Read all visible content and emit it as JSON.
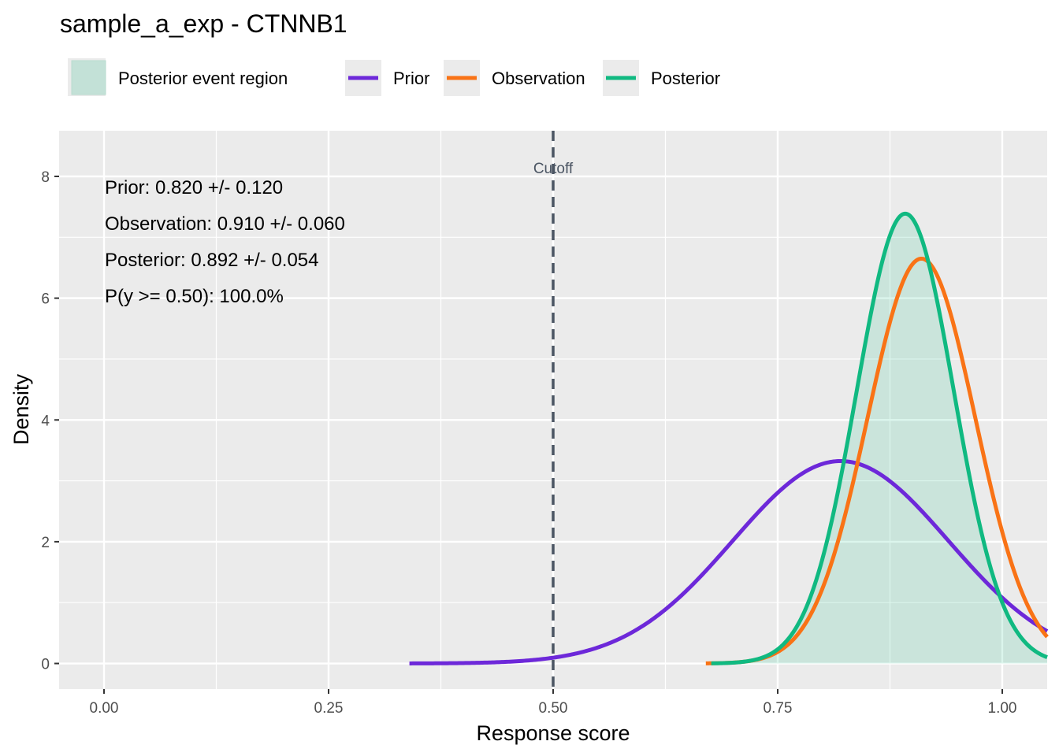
{
  "chart_data": {
    "type": "line",
    "title": "sample_a_exp - CTNNB1",
    "xlabel": "Response score",
    "ylabel": "Density",
    "xlim": [
      -0.05,
      1.05
    ],
    "ylim": [
      -0.42,
      8.75
    ],
    "x_ticks": [
      0.0,
      0.25,
      0.5,
      0.75,
      1.0
    ],
    "x_tick_labels": [
      "0.00",
      "0.25",
      "0.50",
      "0.75",
      "1.00"
    ],
    "y_ticks": [
      0,
      2,
      4,
      6,
      8
    ],
    "y_tick_labels": [
      "0",
      "2",
      "4",
      "6",
      "8"
    ],
    "grid": true,
    "legend_position": "top-left",
    "legend": {
      "fill_label": "Posterior event region",
      "fill_color": "#10b981",
      "lines": [
        {
          "name": "Prior",
          "color": "#6d28d9"
        },
        {
          "name": "Observation",
          "color": "#f97316"
        },
        {
          "name": "Posterior",
          "color": "#10b981"
        }
      ]
    },
    "series": [
      {
        "name": "Prior",
        "distribution": "normal",
        "mean": 0.82,
        "sd": 0.12,
        "x_range": [
          0.34,
          1.05
        ],
        "color": "#6d28d9"
      },
      {
        "name": "Observation",
        "distribution": "normal",
        "mean": 0.91,
        "sd": 0.06,
        "x_range": [
          0.67,
          1.05
        ],
        "color": "#f97316"
      },
      {
        "name": "Posterior",
        "distribution": "normal",
        "mean": 0.892,
        "sd": 0.054,
        "x_range": [
          0.676,
          1.05
        ],
        "color": "#10b981"
      }
    ],
    "shaded_region": {
      "series": "Posterior",
      "x_from": 0.5,
      "x_to": 1.05,
      "color": "#10b981",
      "opacity": 0.15
    },
    "cutoff": {
      "x": 0.5,
      "label": "Cutoff",
      "color": "#4b5563"
    },
    "annotations": [
      "Prior: 0.820 +/- 0.120",
      "Observation: 0.910 +/- 0.060",
      "Posterior: 0.892 +/- 0.054",
      "P(y >= 0.50): 100.0%"
    ]
  }
}
